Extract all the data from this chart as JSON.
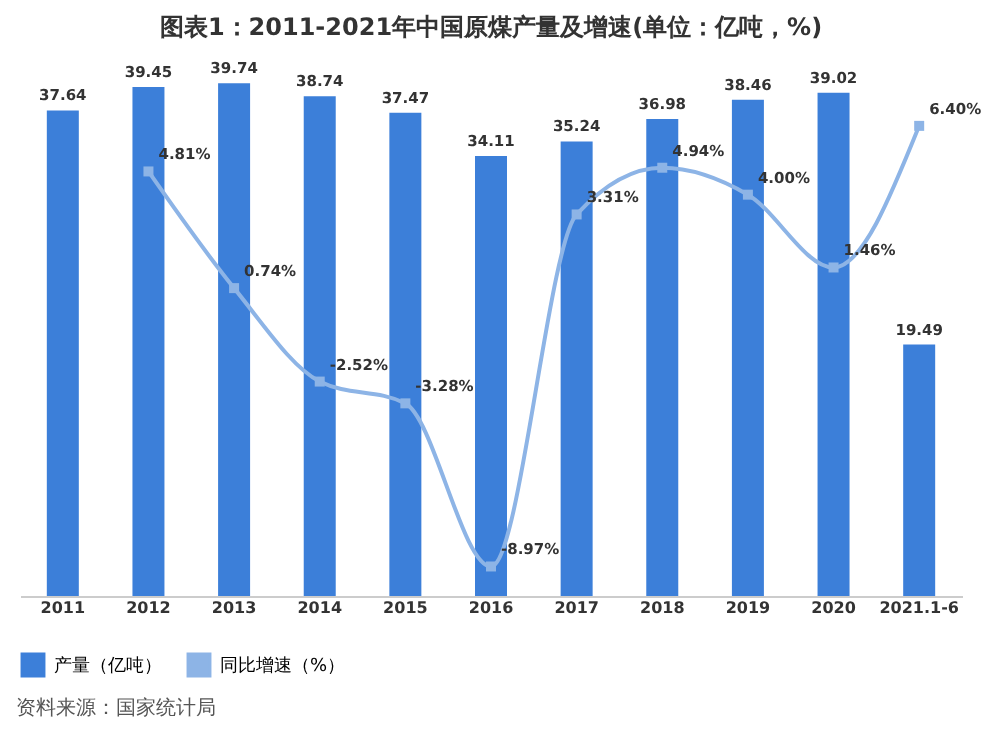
{
  "chart_data": {
    "type": "bar",
    "title": "图表1：2011-2021年中国原煤产量及增速(单位：亿吨，%)",
    "categories": [
      "2011",
      "2012",
      "2013",
      "2014",
      "2015",
      "2016",
      "2017",
      "2018",
      "2019",
      "2020",
      "2021.1-6"
    ],
    "series": [
      {
        "name": "产量（亿吨）",
        "color": "#3c7fd9",
        "values": [
          37.64,
          39.45,
          39.74,
          38.74,
          37.47,
          34.11,
          35.24,
          36.98,
          38.46,
          39.02,
          19.49
        ],
        "value_labels": [
          "37.64",
          "39.45",
          "39.74",
          "38.74",
          "37.47",
          "34.11",
          "35.24",
          "36.98",
          "38.46",
          "39.02",
          "19.49"
        ]
      },
      {
        "name": "同比增速（%）",
        "type": "line",
        "axis": "y2",
        "color": "#8db4e6",
        "marker": "square",
        "values": [
          null,
          4.81,
          0.74,
          -2.52,
          -3.28,
          -8.97,
          3.31,
          4.94,
          4.0,
          1.46,
          6.4
        ],
        "value_labels": [
          null,
          "4.81%",
          "0.74%",
          "-2.52%",
          "-3.28%",
          "-8.97%",
          "3.31%",
          "4.94%",
          "4.00%",
          "1.46%",
          "6.40%"
        ]
      }
    ],
    "tick_labels": "x",
    "legend": "bottom",
    "annotations": [
      "资料来源：国家统计局"
    ]
  }
}
